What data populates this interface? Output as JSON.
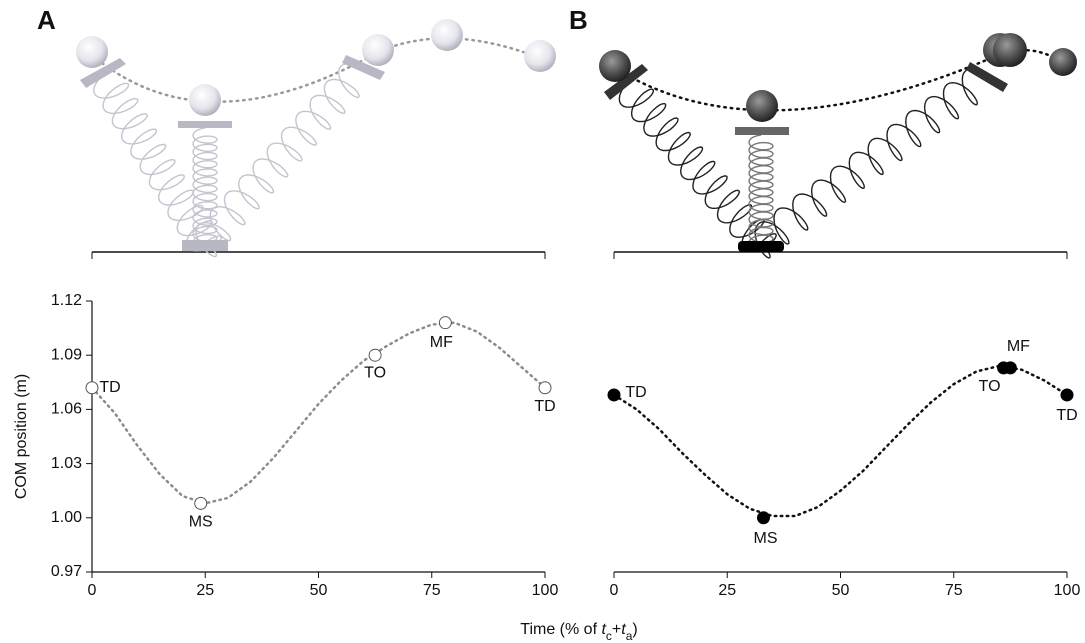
{
  "chart_data": [
    {
      "type": "line",
      "panel": "A",
      "x": [
        0,
        5,
        10,
        15,
        20,
        25,
        30,
        35,
        40,
        45,
        50,
        55,
        60,
        65,
        70,
        75,
        80,
        85,
        90,
        95,
        100
      ],
      "series": [
        {
          "color": "#8c8c8c",
          "values": [
            1.072,
            1.058,
            1.04,
            1.024,
            1.012,
            1.008,
            1.011,
            1.02,
            1.033,
            1.048,
            1.063,
            1.076,
            1.087,
            1.095,
            1.102,
            1.107,
            1.108,
            1.103,
            1.094,
            1.083,
            1.072
          ]
        }
      ],
      "points": {
        "x": [
          0,
          24,
          62.5,
          78,
          100
        ],
        "values": [
          1.072,
          1.008,
          1.09,
          1.108,
          1.072
        ],
        "labels": [
          "TD",
          "MS",
          "TO",
          "MF",
          "TD"
        ],
        "fill": "#ffffff",
        "stroke": "#555555"
      },
      "xlim": [
        0,
        100
      ],
      "xticks": [
        0,
        25,
        50,
        75,
        100
      ],
      "ylim": [
        0.97,
        1.12
      ],
      "yticks": [
        0.97,
        {
          "value": 1.0,
          "label": "1.00"
        },
        1.03,
        1.06,
        1.09,
        1.12
      ],
      "ylabel": "COM position (m)"
    },
    {
      "type": "line",
      "panel": "B",
      "x": [
        0,
        5,
        10,
        15,
        20,
        25,
        30,
        35,
        40,
        45,
        50,
        55,
        60,
        65,
        70,
        75,
        80,
        85,
        90,
        95,
        100
      ],
      "series": [
        {
          "color": "#111111",
          "values": [
            1.068,
            1.06,
            1.049,
            1.036,
            1.024,
            1.013,
            1.005,
            1.001,
            1.001,
            1.006,
            1.015,
            1.026,
            1.039,
            1.052,
            1.064,
            1.074,
            1.081,
            1.084,
            1.082,
            1.076,
            1.068
          ]
        }
      ],
      "points": {
        "x": [
          0,
          33,
          86,
          87.5,
          100
        ],
        "values": [
          1.068,
          1.0,
          1.083,
          1.083,
          1.068
        ],
        "labels": [
          "TD",
          "MS",
          "TO",
          "MF",
          "TD"
        ],
        "fill": "#000000",
        "stroke": "#000000"
      },
      "xlim": [
        0,
        100
      ],
      "xticks": [
        0,
        25,
        50,
        75,
        100
      ],
      "ylim": [
        0.97,
        1.12
      ]
    }
  ],
  "xlabel": [
    "Time (% of ",
    "t",
    "c",
    "+",
    "t",
    "a",
    ")"
  ]
}
